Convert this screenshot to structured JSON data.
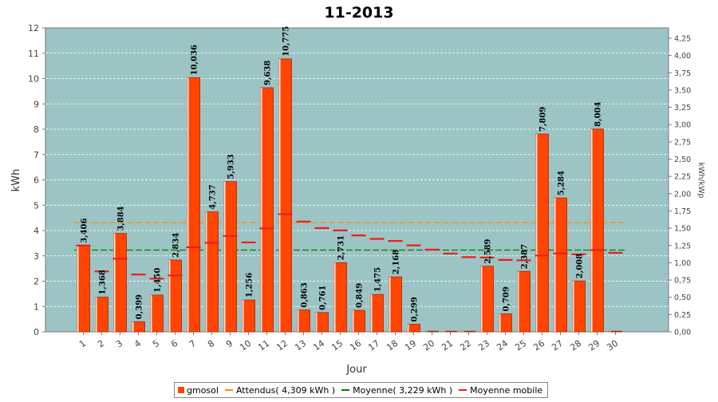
{
  "chart_data": {
    "type": "bar",
    "title": "11-2013",
    "xlabel": "Jour",
    "ylabel": "kWh",
    "y2label": "kWh/kWp",
    "ylim": [
      0,
      12
    ],
    "y2lim": [
      0,
      4.4
    ],
    "y2_ticks": [
      "0,00",
      "0,25",
      "0,50",
      "0,75",
      "1,00",
      "1,25",
      "1,50",
      "1,75",
      "2,00",
      "2,25",
      "2,50",
      "2,75",
      "3,00",
      "3,25",
      "3,50",
      "3,75",
      "4,00",
      "4,25"
    ],
    "categories": [
      "1",
      "2",
      "3",
      "4",
      "5",
      "6",
      "7",
      "8",
      "9",
      "10",
      "11",
      "12",
      "13",
      "14",
      "15",
      "16",
      "17",
      "18",
      "19",
      "20",
      "21",
      "22",
      "23",
      "24",
      "25",
      "26",
      "27",
      "28",
      "29",
      "30"
    ],
    "series": [
      {
        "name": "gmosol",
        "values": [
          3.406,
          1.368,
          3.884,
          0.399,
          1.45,
          2.834,
          10.036,
          4.737,
          5.933,
          1.256,
          9.638,
          10.775,
          0.863,
          0.761,
          2.731,
          0.849,
          1.475,
          2.168,
          0.299,
          0,
          0,
          0,
          2.589,
          0.709,
          2.387,
          7.809,
          5.284,
          2.008,
          8.004,
          0
        ],
        "labels": [
          "3,406",
          "1,368",
          "3,884",
          "0,399",
          "1,450",
          "2,834",
          "10,036",
          "4,737",
          "5,933",
          "1,256",
          "9,638",
          "10,775",
          "0,863",
          "0,761",
          "2,731",
          "0,849",
          "1,475",
          "2,168",
          "0,299",
          "",
          "",
          "",
          "2,589",
          "0,709",
          "2,387",
          "7,809",
          "5,284",
          "2,008",
          "8,004",
          ""
        ]
      },
      {
        "name": "Moyenne mobile",
        "values": [
          3.406,
          2.387,
          2.886,
          2.264,
          2.101,
          2.223,
          3.338,
          3.513,
          3.782,
          3.529,
          4.085,
          4.643,
          4.352,
          4.095,
          4.004,
          3.807,
          3.67,
          3.587,
          3.414,
          3.243,
          3.089,
          2.948,
          2.932,
          2.839,
          2.821,
          3.013,
          3.097,
          3.058,
          3.228,
          3.12
        ]
      }
    ],
    "reference_lines": [
      {
        "name": "Attendus( 4,309 kWh )",
        "value": 4.309,
        "color": "#ff8c00",
        "style": "dashed"
      },
      {
        "name": "Moyenne( 3,229 kWh )",
        "value": 3.229,
        "color": "#008000",
        "style": "dashed"
      }
    ],
    "legend_position": "bottom",
    "grid": true,
    "colors": {
      "bar": "#ff4500",
      "bar_edge": "#b02000",
      "plot_bg": "#9cc4c4",
      "grid": "#ffffff",
      "moving_avg": "#ee1c1c"
    }
  },
  "legend": {
    "items": [
      {
        "label": "gmosol",
        "kind": "box",
        "color": "#ff4500"
      },
      {
        "label": "Attendus( 4,309 kWh )",
        "kind": "line",
        "color": "#ff8c00"
      },
      {
        "label": "Moyenne( 3,229 kWh )",
        "kind": "line",
        "color": "#008000"
      },
      {
        "label": "Moyenne mobile",
        "kind": "line",
        "color": "#ee1c1c"
      }
    ]
  }
}
